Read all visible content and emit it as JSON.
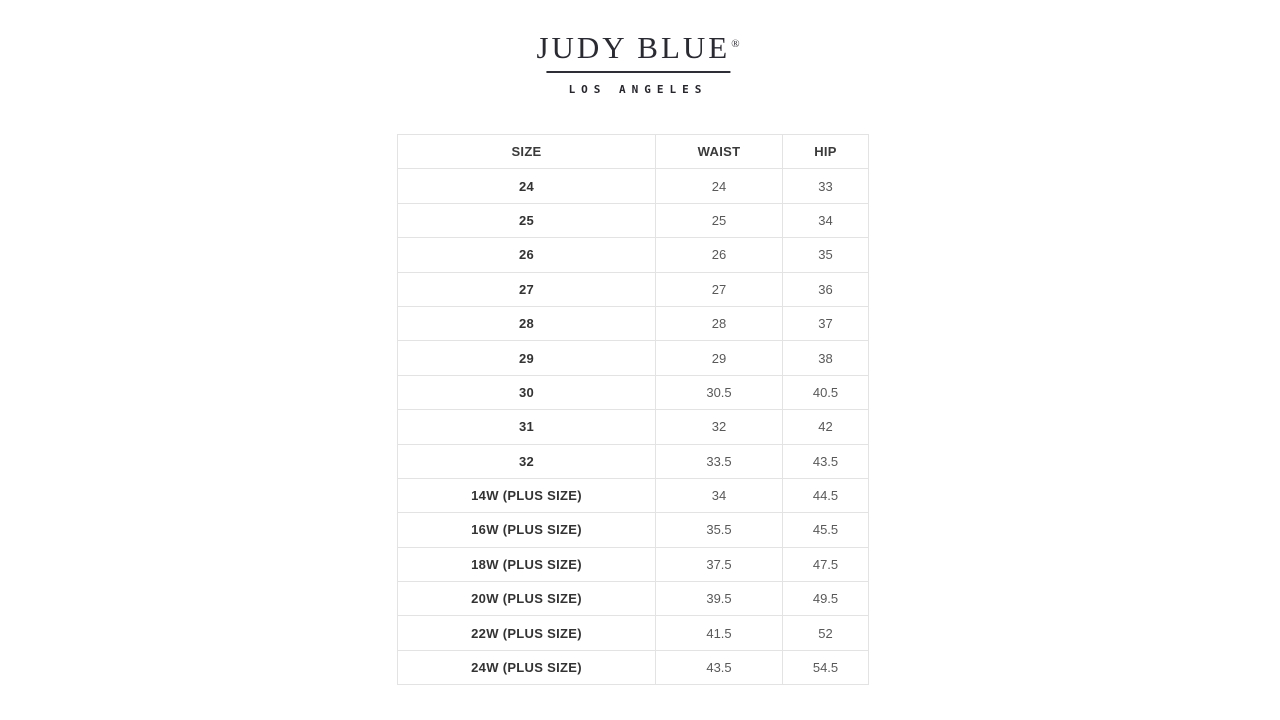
{
  "brand": {
    "name": "JUDY BLUE",
    "registered_mark": "®",
    "tagline": "LOS ANGELES"
  },
  "colors": {
    "logo_text": "#2a2a33",
    "table_border": "#e3e3e3",
    "size_text": "#333333",
    "measure_text": "#595959",
    "background": "#ffffff"
  },
  "size_chart": {
    "columns": [
      "SIZE",
      "WAIST",
      "HIP"
    ],
    "rows": [
      [
        "24",
        "24",
        "33"
      ],
      [
        "25",
        "25",
        "34"
      ],
      [
        "26",
        "26",
        "35"
      ],
      [
        "27",
        "27",
        "36"
      ],
      [
        "28",
        "28",
        "37"
      ],
      [
        "29",
        "29",
        "38"
      ],
      [
        "30",
        "30.5",
        "40.5"
      ],
      [
        "31",
        "32",
        "42"
      ],
      [
        "32",
        "33.5",
        "43.5"
      ],
      [
        "14W (PLUS SIZE)",
        "34",
        "44.5"
      ],
      [
        "16W (PLUS SIZE)",
        "35.5",
        "45.5"
      ],
      [
        "18W (PLUS SIZE)",
        "37.5",
        "47.5"
      ],
      [
        "20W (PLUS SIZE)",
        "39.5",
        "49.5"
      ],
      [
        "22W (PLUS SIZE)",
        "41.5",
        "52"
      ],
      [
        "24W (PLUS SIZE)",
        "43.5",
        "54.5"
      ]
    ]
  }
}
